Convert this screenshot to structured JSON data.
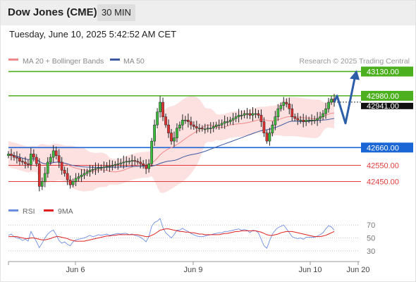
{
  "header": {
    "title": "Dow Jones (CME)",
    "timeframe": "30 MIN"
  },
  "datetime": "Tuesday, June 10, 2025 5:42:52 AM CET",
  "legend": {
    "ma20_label": "MA 20 + Bollinger Bands",
    "ma50_label": "MA 50",
    "copyright": "Research © 2025 Trading Central"
  },
  "colors": {
    "resistance": "#4caf1d",
    "pivot": "#1a66d6",
    "support": "#e23b3b",
    "bollinger_fill": "#fde0e0",
    "ma20": "#f08a8a",
    "ma50": "#3d5aa3",
    "arrow": "#2d5ea8",
    "rsi": "#6d8ee0",
    "rsi_ma": "#e02020"
  },
  "chart_data": [
    {
      "type": "candlestick",
      "x_ticks": [
        "Jun 6",
        "Jun 9",
        "Jun 10",
        "Jun 20"
      ],
      "ylim": [
        42330,
        43180
      ],
      "last_price": 42941.0,
      "last_price_label": "42941.00",
      "levels": [
        {
          "value": 43130.0,
          "label": "43130.00",
          "kind": "resistance",
          "boxed": true
        },
        {
          "value": 42980.0,
          "label": "42980.00",
          "kind": "resistance",
          "boxed": true
        },
        {
          "value": 42660.0,
          "label": "42660.00",
          "kind": "pivot",
          "boxed": true
        },
        {
          "value": 42550.0,
          "label": "42550.00",
          "kind": "support",
          "boxed": false
        },
        {
          "value": 42450.0,
          "label": "42450.00",
          "kind": "support",
          "boxed": false
        }
      ],
      "series": [
        {
          "name": "MA 20 + Bollinger Bands"
        },
        {
          "name": "MA 50"
        }
      ],
      "close_path": [
        42620,
        42610,
        42600,
        42595,
        42575,
        42570,
        42560,
        42555,
        42620,
        42600,
        42560,
        42420,
        42450,
        42500,
        42570,
        42600,
        42640,
        42610,
        42570,
        42520,
        42500,
        42460,
        42430,
        42450,
        42470,
        42480,
        42490,
        42500,
        42510,
        42520,
        42525,
        42530,
        42535,
        42535,
        42540,
        42545,
        42545,
        42550,
        42555,
        42560,
        42565,
        42570,
        42575,
        42575,
        42580,
        42575,
        42570,
        42560,
        42550,
        42530,
        42560,
        42700,
        42800,
        42880,
        42940,
        42850,
        42800,
        42750,
        42700,
        42720,
        42780,
        42800,
        42830,
        42830,
        42820,
        42800,
        42790,
        42780,
        42780,
        42775,
        42775,
        42780,
        42780,
        42790,
        42800,
        42800,
        42810,
        42820,
        42820,
        42830,
        42840,
        42850,
        42860,
        42860,
        42870,
        42870,
        42860,
        42870,
        42870,
        42860,
        42820,
        42750,
        42700,
        42750,
        42800,
        42850,
        42900,
        42920,
        42940,
        42930,
        42900,
        42850,
        42840,
        42830,
        42830,
        42820,
        42830,
        42830,
        42830,
        42830,
        42840,
        42850,
        42870,
        42900,
        42940,
        42960,
        42941
      ],
      "forecast": {
        "path": [
          42941,
          42980,
          42810,
          43130
        ]
      }
    },
    {
      "type": "line",
      "legend": [
        "RSI",
        "9MA"
      ],
      "y_ticks": [
        70,
        50,
        30
      ],
      "ylim": [
        20,
        80
      ],
      "series": [
        {
          "name": "RSI",
          "values": [
            54,
            56,
            52,
            50,
            49,
            46,
            48,
            45,
            60,
            52,
            44,
            35,
            42,
            50,
            56,
            60,
            62,
            55,
            46,
            42,
            44,
            40,
            38,
            44,
            47,
            48,
            49,
            50,
            52,
            54,
            52,
            53,
            55,
            54,
            55,
            56,
            54,
            55,
            56,
            57,
            56,
            57,
            57,
            55,
            56,
            54,
            53,
            51,
            48,
            44,
            52,
            68,
            74,
            76,
            80,
            66,
            58,
            54,
            50,
            55,
            62,
            62,
            65,
            62,
            60,
            57,
            55,
            53,
            52,
            52,
            53,
            54,
            55,
            56,
            57,
            58,
            58,
            60,
            60,
            61,
            62,
            63,
            64,
            62,
            63,
            62,
            58,
            62,
            61,
            58,
            48,
            38,
            34,
            46,
            56,
            62,
            66,
            68,
            70,
            64,
            58,
            52,
            50,
            49,
            50,
            48,
            51,
            51,
            51,
            51,
            53,
            55,
            58,
            64,
            69,
            67,
            62
          ]
        },
        {
          "name": "9MA",
          "values": [
            52,
            52,
            52,
            52,
            51,
            50,
            49,
            49,
            50,
            50,
            49,
            48,
            47,
            47,
            48,
            49,
            51,
            52,
            52,
            51,
            50,
            49,
            47,
            46,
            45,
            45,
            45,
            45,
            46,
            47,
            48,
            49,
            50,
            51,
            52,
            53,
            53,
            54,
            54,
            55,
            55,
            55,
            55,
            55,
            55,
            55,
            55,
            54,
            53,
            52,
            52,
            54,
            56,
            59,
            62,
            63,
            64,
            64,
            63,
            62,
            61,
            60,
            60,
            59,
            59,
            58,
            58,
            57,
            56,
            56,
            55,
            55,
            55,
            55,
            55,
            55,
            56,
            57,
            57,
            58,
            59,
            60,
            60,
            61,
            61,
            61,
            61,
            61,
            61,
            60,
            59,
            57,
            55,
            54,
            54,
            55,
            56,
            58,
            59,
            60,
            60,
            60,
            59,
            58,
            57,
            56,
            55,
            54,
            53,
            52,
            52,
            52,
            53,
            54,
            56,
            58,
            60
          ]
        }
      ]
    }
  ]
}
